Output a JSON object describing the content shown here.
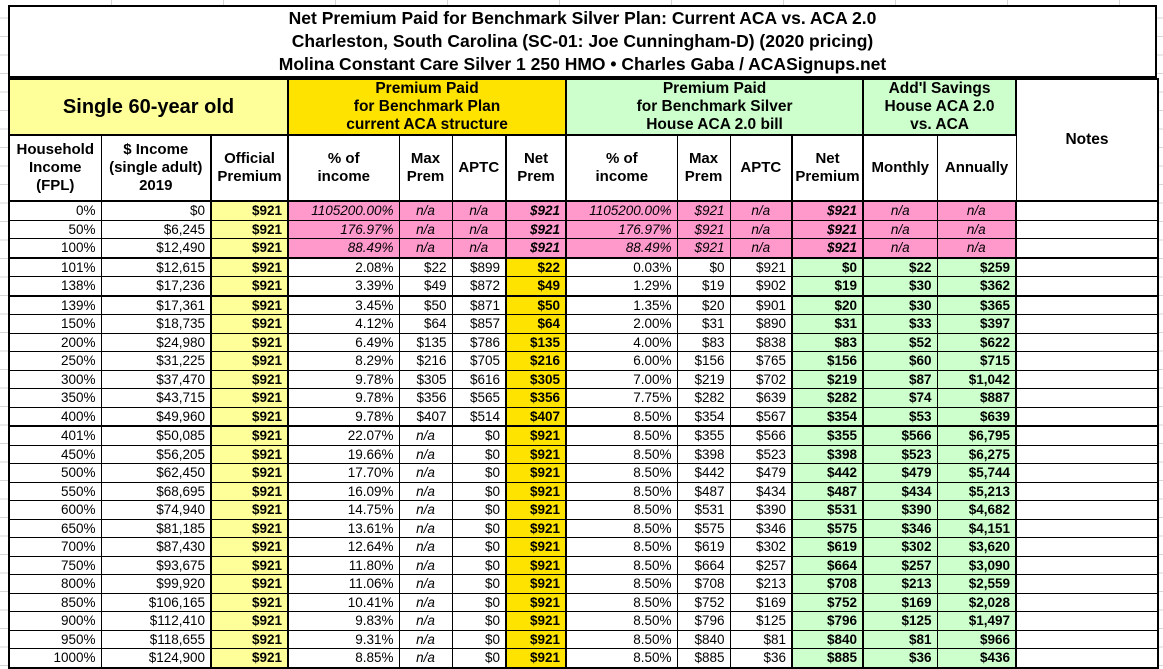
{
  "title": {
    "line1": "Net Premium Paid for Benchmark Silver Plan: Current ACA vs. ACA 2.0",
    "line2": "Charleston, South Carolina (SC-01: Joe Cunningham-D) (2020 pricing)",
    "line3": "Molina Constant Care Silver 1 250 HMO • Charles Gaba / ACASignups.net"
  },
  "groups": {
    "subject": "Single 60-year old",
    "aca": {
      "l1": "Premium Paid",
      "l2": "for Benchmark Plan",
      "l3": "current ACA structure"
    },
    "aca2": {
      "l1": "Premium Paid",
      "l2": "for Benchmark Silver",
      "l3": "House ACA 2.0 bill"
    },
    "savings": {
      "l1": "Add'l Savings",
      "l2": "House ACA 2.0",
      "l3": "vs. ACA"
    },
    "notes": "Notes"
  },
  "headers": {
    "fpl": {
      "l1": "Household",
      "l2": "Income",
      "l3": "(FPL)"
    },
    "income": {
      "l1": "$ Income",
      "l2": "(single adult)",
      "l3": "2019"
    },
    "official": {
      "l1": "Official",
      "l2": "Premium"
    },
    "a_pct": {
      "l1": "% of",
      "l2": "income"
    },
    "a_max": {
      "l1": "Max",
      "l2": "Prem"
    },
    "a_aptc": {
      "l1": "APTC"
    },
    "a_net": {
      "l1": "Net",
      "l2": "Prem"
    },
    "b_pct": {
      "l1": "% of",
      "l2": "income"
    },
    "b_max": {
      "l1": "Max",
      "l2": "Prem"
    },
    "b_aptc": {
      "l1": "APTC"
    },
    "b_net": {
      "l1": "Net",
      "l2": "Premium"
    },
    "mo": {
      "l1": "Monthly"
    },
    "yr": {
      "l1": "Annually"
    }
  },
  "colors": {
    "gold": "#FFE300",
    "pale_yellow": "#FFFF99",
    "pale_green": "#CCFFCC",
    "pink": "#FF99CC",
    "grid_border": "#000000",
    "faint_gridline": "#D6D6D6"
  },
  "rows": [
    {
      "fpl": "0%",
      "income": "$0",
      "official": "$921",
      "a_pct": "1105200.00%",
      "a_max": "n/a",
      "a_aptc": "n/a",
      "a_net": "$921",
      "b_pct": "1105200.00%",
      "b_max": "$921",
      "b_aptc": "n/a",
      "b_net": "$921",
      "mo": "n/a",
      "yr": "n/a",
      "pink": true
    },
    {
      "fpl": "50%",
      "income": "$6,245",
      "official": "$921",
      "a_pct": "176.97%",
      "a_max": "n/a",
      "a_aptc": "n/a",
      "a_net": "$921",
      "b_pct": "176.97%",
      "b_max": "$921",
      "b_aptc": "n/a",
      "b_net": "$921",
      "mo": "n/a",
      "yr": "n/a",
      "pink": true
    },
    {
      "fpl": "100%",
      "income": "$12,490",
      "official": "$921",
      "a_pct": "88.49%",
      "a_max": "n/a",
      "a_aptc": "n/a",
      "a_net": "$921",
      "b_pct": "88.49%",
      "b_max": "$921",
      "b_aptc": "n/a",
      "b_net": "$921",
      "mo": "n/a",
      "yr": "n/a",
      "pink": true,
      "sep": true
    },
    {
      "fpl": "101%",
      "income": "$12,615",
      "official": "$921",
      "a_pct": "2.08%",
      "a_max": "$22",
      "a_aptc": "$899",
      "a_net": "$22",
      "b_pct": "0.03%",
      "b_max": "$0",
      "b_aptc": "$921",
      "b_net": "$0",
      "mo": "$22",
      "yr": "$259"
    },
    {
      "fpl": "138%",
      "income": "$17,236",
      "official": "$921",
      "a_pct": "3.39%",
      "a_max": "$49",
      "a_aptc": "$872",
      "a_net": "$49",
      "b_pct": "1.29%",
      "b_max": "$19",
      "b_aptc": "$902",
      "b_net": "$19",
      "mo": "$30",
      "yr": "$362",
      "sep": true
    },
    {
      "fpl": "139%",
      "income": "$17,361",
      "official": "$921",
      "a_pct": "3.45%",
      "a_max": "$50",
      "a_aptc": "$871",
      "a_net": "$50",
      "b_pct": "1.35%",
      "b_max": "$20",
      "b_aptc": "$901",
      "b_net": "$20",
      "mo": "$30",
      "yr": "$365"
    },
    {
      "fpl": "150%",
      "income": "$18,735",
      "official": "$921",
      "a_pct": "4.12%",
      "a_max": "$64",
      "a_aptc": "$857",
      "a_net": "$64",
      "b_pct": "2.00%",
      "b_max": "$31",
      "b_aptc": "$890",
      "b_net": "$31",
      "mo": "$33",
      "yr": "$397"
    },
    {
      "fpl": "200%",
      "income": "$24,980",
      "official": "$921",
      "a_pct": "6.49%",
      "a_max": "$135",
      "a_aptc": "$786",
      "a_net": "$135",
      "b_pct": "4.00%",
      "b_max": "$83",
      "b_aptc": "$838",
      "b_net": "$83",
      "mo": "$52",
      "yr": "$622"
    },
    {
      "fpl": "250%",
      "income": "$31,225",
      "official": "$921",
      "a_pct": "8.29%",
      "a_max": "$216",
      "a_aptc": "$705",
      "a_net": "$216",
      "b_pct": "6.00%",
      "b_max": "$156",
      "b_aptc": "$765",
      "b_net": "$156",
      "mo": "$60",
      "yr": "$715"
    },
    {
      "fpl": "300%",
      "income": "$37,470",
      "official": "$921",
      "a_pct": "9.78%",
      "a_max": "$305",
      "a_aptc": "$616",
      "a_net": "$305",
      "b_pct": "7.00%",
      "b_max": "$219",
      "b_aptc": "$702",
      "b_net": "$219",
      "mo": "$87",
      "yr": "$1,042"
    },
    {
      "fpl": "350%",
      "income": "$43,715",
      "official": "$921",
      "a_pct": "9.78%",
      "a_max": "$356",
      "a_aptc": "$565",
      "a_net": "$356",
      "b_pct": "7.75%",
      "b_max": "$282",
      "b_aptc": "$639",
      "b_net": "$282",
      "mo": "$74",
      "yr": "$887"
    },
    {
      "fpl": "400%",
      "income": "$49,960",
      "official": "$921",
      "a_pct": "9.78%",
      "a_max": "$407",
      "a_aptc": "$514",
      "a_net": "$407",
      "b_pct": "8.50%",
      "b_max": "$354",
      "b_aptc": "$567",
      "b_net": "$354",
      "mo": "$53",
      "yr": "$639",
      "sep": true
    },
    {
      "fpl": "401%",
      "income": "$50,085",
      "official": "$921",
      "a_pct": "22.07%",
      "a_max": "n/a",
      "a_aptc": "$0",
      "a_net": "$921",
      "b_pct": "8.50%",
      "b_max": "$355",
      "b_aptc": "$566",
      "b_net": "$355",
      "mo": "$566",
      "yr": "$6,795"
    },
    {
      "fpl": "450%",
      "income": "$56,205",
      "official": "$921",
      "a_pct": "19.66%",
      "a_max": "n/a",
      "a_aptc": "$0",
      "a_net": "$921",
      "b_pct": "8.50%",
      "b_max": "$398",
      "b_aptc": "$523",
      "b_net": "$398",
      "mo": "$523",
      "yr": "$6,275"
    },
    {
      "fpl": "500%",
      "income": "$62,450",
      "official": "$921",
      "a_pct": "17.70%",
      "a_max": "n/a",
      "a_aptc": "$0",
      "a_net": "$921",
      "b_pct": "8.50%",
      "b_max": "$442",
      "b_aptc": "$479",
      "b_net": "$442",
      "mo": "$479",
      "yr": "$5,744"
    },
    {
      "fpl": "550%",
      "income": "$68,695",
      "official": "$921",
      "a_pct": "16.09%",
      "a_max": "n/a",
      "a_aptc": "$0",
      "a_net": "$921",
      "b_pct": "8.50%",
      "b_max": "$487",
      "b_aptc": "$434",
      "b_net": "$487",
      "mo": "$434",
      "yr": "$5,213"
    },
    {
      "fpl": "600%",
      "income": "$74,940",
      "official": "$921",
      "a_pct": "14.75%",
      "a_max": "n/a",
      "a_aptc": "$0",
      "a_net": "$921",
      "b_pct": "8.50%",
      "b_max": "$531",
      "b_aptc": "$390",
      "b_net": "$531",
      "mo": "$390",
      "yr": "$4,682"
    },
    {
      "fpl": "650%",
      "income": "$81,185",
      "official": "$921",
      "a_pct": "13.61%",
      "a_max": "n/a",
      "a_aptc": "$0",
      "a_net": "$921",
      "b_pct": "8.50%",
      "b_max": "$575",
      "b_aptc": "$346",
      "b_net": "$575",
      "mo": "$346",
      "yr": "$4,151"
    },
    {
      "fpl": "700%",
      "income": "$87,430",
      "official": "$921",
      "a_pct": "12.64%",
      "a_max": "n/a",
      "a_aptc": "$0",
      "a_net": "$921",
      "b_pct": "8.50%",
      "b_max": "$619",
      "b_aptc": "$302",
      "b_net": "$619",
      "mo": "$302",
      "yr": "$3,620"
    },
    {
      "fpl": "750%",
      "income": "$93,675",
      "official": "$921",
      "a_pct": "11.80%",
      "a_max": "n/a",
      "a_aptc": "$0",
      "a_net": "$921",
      "b_pct": "8.50%",
      "b_max": "$664",
      "b_aptc": "$257",
      "b_net": "$664",
      "mo": "$257",
      "yr": "$3,090"
    },
    {
      "fpl": "800%",
      "income": "$99,920",
      "official": "$921",
      "a_pct": "11.06%",
      "a_max": "n/a",
      "a_aptc": "$0",
      "a_net": "$921",
      "b_pct": "8.50%",
      "b_max": "$708",
      "b_aptc": "$213",
      "b_net": "$708",
      "mo": "$213",
      "yr": "$2,559"
    },
    {
      "fpl": "850%",
      "income": "$106,165",
      "official": "$921",
      "a_pct": "10.41%",
      "a_max": "n/a",
      "a_aptc": "$0",
      "a_net": "$921",
      "b_pct": "8.50%",
      "b_max": "$752",
      "b_aptc": "$169",
      "b_net": "$752",
      "mo": "$169",
      "yr": "$2,028"
    },
    {
      "fpl": "900%",
      "income": "$112,410",
      "official": "$921",
      "a_pct": "9.83%",
      "a_max": "n/a",
      "a_aptc": "$0",
      "a_net": "$921",
      "b_pct": "8.50%",
      "b_max": "$796",
      "b_aptc": "$125",
      "b_net": "$796",
      "mo": "$125",
      "yr": "$1,497"
    },
    {
      "fpl": "950%",
      "income": "$118,655",
      "official": "$921",
      "a_pct": "9.31%",
      "a_max": "n/a",
      "a_aptc": "$0",
      "a_net": "$921",
      "b_pct": "8.50%",
      "b_max": "$840",
      "b_aptc": "$81",
      "b_net": "$840",
      "mo": "$81",
      "yr": "$966"
    },
    {
      "fpl": "1000%",
      "income": "$124,900",
      "official": "$921",
      "a_pct": "8.85%",
      "a_max": "n/a",
      "a_aptc": "$0",
      "a_net": "$921",
      "b_pct": "8.50%",
      "b_max": "$885",
      "b_aptc": "$36",
      "b_net": "$885",
      "mo": "$36",
      "yr": "$436"
    }
  ]
}
